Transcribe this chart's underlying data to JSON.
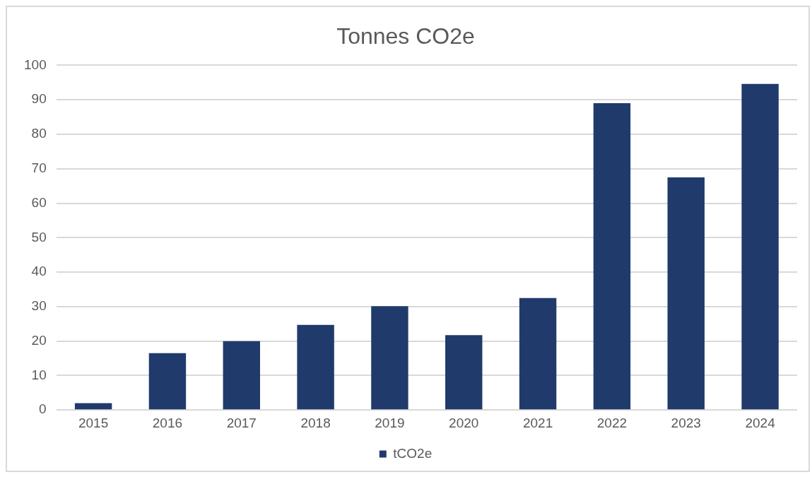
{
  "chart_data": {
    "type": "bar",
    "title": "Tonnes CO2e",
    "categories": [
      "2015",
      "2016",
      "2017",
      "2018",
      "2019",
      "2020",
      "2021",
      "2022",
      "2023",
      "2024"
    ],
    "series": [
      {
        "name": "tCO2e",
        "color": "#203a6b",
        "values": [
          2.0,
          16.5,
          20.0,
          24.7,
          30.1,
          21.7,
          32.5,
          89.0,
          67.5,
          94.6
        ]
      }
    ],
    "ylim": [
      0,
      100
    ],
    "yticks": [
      0,
      10,
      20,
      30,
      40,
      50,
      60,
      70,
      80,
      90,
      100
    ],
    "grid": "y",
    "legend": "bottom"
  }
}
